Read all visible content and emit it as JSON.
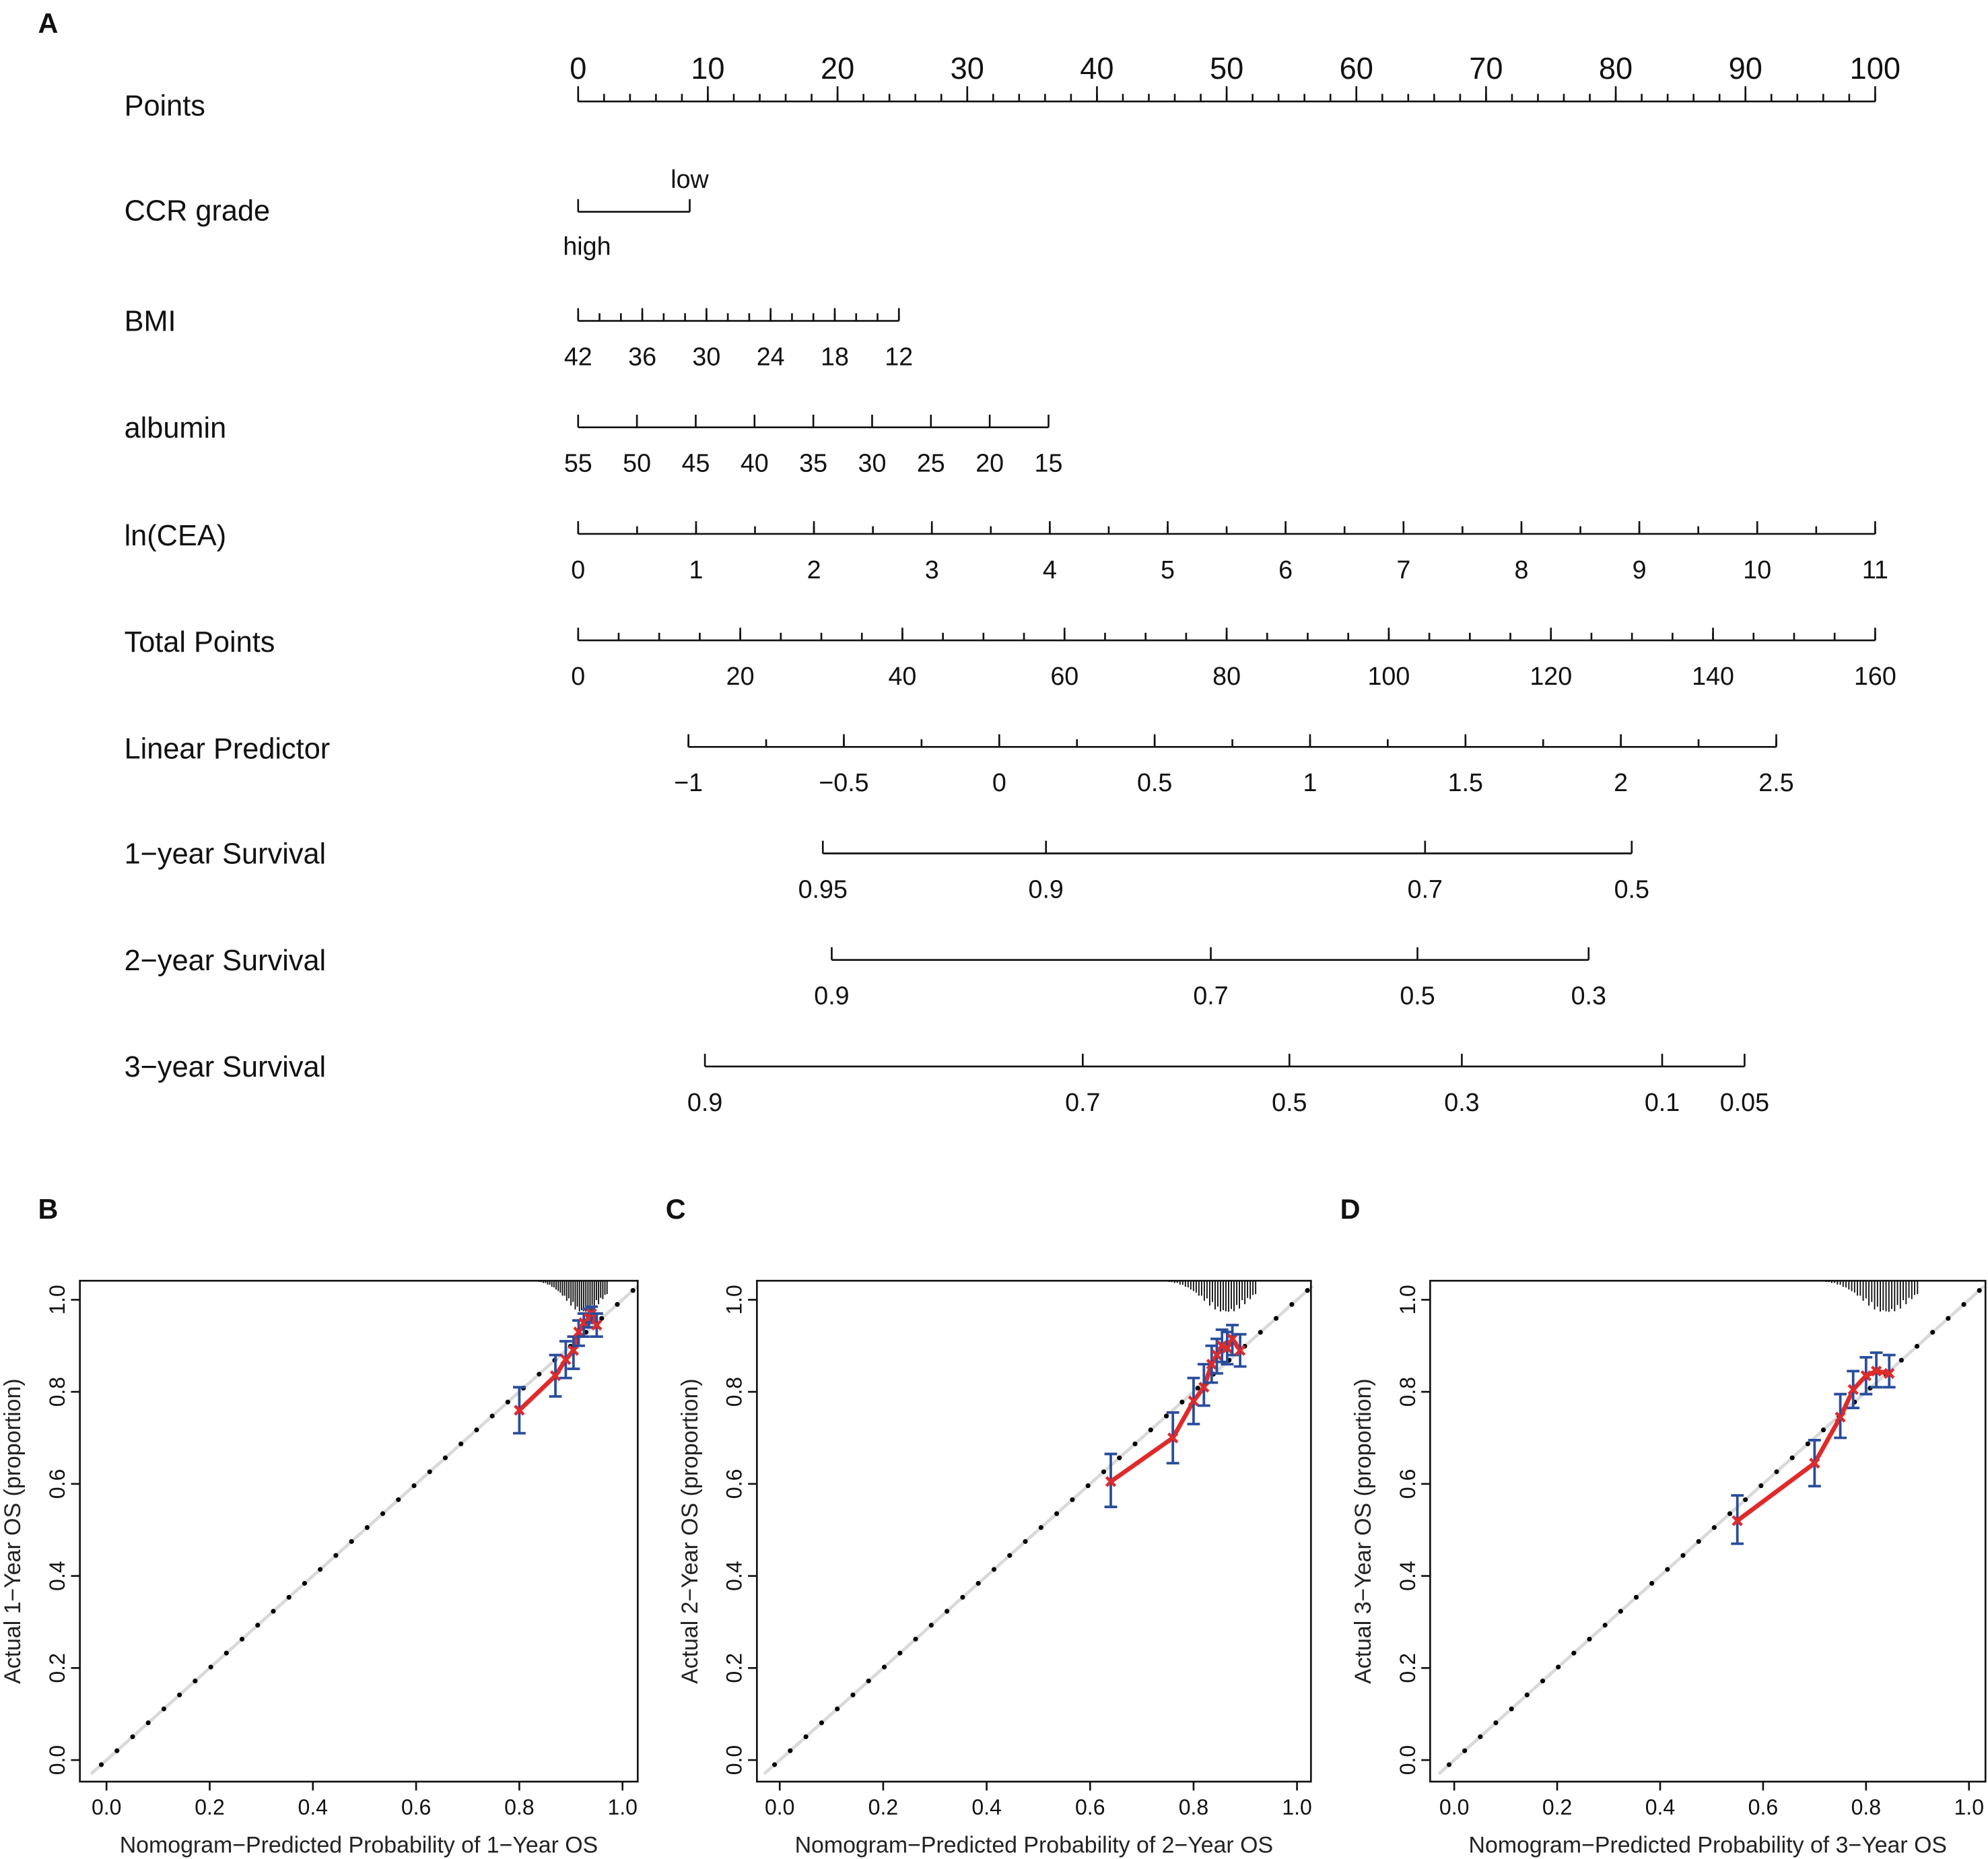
{
  "panels": [
    "A",
    "B",
    "C",
    "D"
  ],
  "chart_data": [
    {
      "type": "nomogram",
      "panel": "A",
      "rows": [
        {
          "label": "Points",
          "ticks": [
            "0",
            "10",
            "20",
            "30",
            "40",
            "50",
            "60",
            "70",
            "80",
            "90",
            "100"
          ],
          "range": [
            0,
            100
          ]
        },
        {
          "label": "CCR grade",
          "ticks": [
            "high",
            "low"
          ]
        },
        {
          "label": "BMI",
          "ticks": [
            "42",
            "36",
            "30",
            "24",
            "18",
            "12"
          ],
          "range": [
            42,
            12
          ]
        },
        {
          "label": "albumin",
          "ticks": [
            "55",
            "50",
            "45",
            "40",
            "35",
            "30",
            "25",
            "20",
            "15"
          ],
          "range": [
            55,
            15
          ]
        },
        {
          "label": "ln(CEA)",
          "ticks": [
            "0",
            "1",
            "2",
            "3",
            "4",
            "5",
            "6",
            "7",
            "8",
            "9",
            "10",
            "11"
          ],
          "range": [
            0,
            11
          ]
        },
        {
          "label": "Total Points",
          "ticks": [
            "0",
            "20",
            "40",
            "60",
            "80",
            "100",
            "120",
            "140",
            "160"
          ],
          "range": [
            0,
            160
          ]
        },
        {
          "label": "Linear Predictor",
          "ticks": [
            "−1",
            "−0.5",
            "0",
            "0.5",
            "1",
            "1.5",
            "2",
            "2.5"
          ],
          "range": [
            -1,
            2.5
          ]
        },
        {
          "label": "1−year Survival",
          "ticks": [
            "0.95",
            "0.9",
            "0.7",
            "0.5"
          ]
        },
        {
          "label": "2−year Survival",
          "ticks": [
            "0.9",
            "0.7",
            "0.5",
            "0.3"
          ]
        },
        {
          "label": "3−year Survival",
          "ticks": [
            "0.9",
            "0.7",
            "0.5",
            "0.3",
            "0.1",
            "0.05"
          ]
        }
      ]
    },
    {
      "type": "scatter",
      "panel": "B",
      "xlabel": "Nomogram−Predicted Probability of 1−Year OS",
      "ylabel": "Actual 1−Year OS (proportion)",
      "xlim": [
        0,
        1
      ],
      "ylim": [
        0,
        1
      ],
      "ticks": [
        "0.0",
        "0.2",
        "0.4",
        "0.6",
        "0.8",
        "1.0"
      ],
      "points": [
        [
          0.8,
          0.76,
          0.71,
          0.81
        ],
        [
          0.87,
          0.835,
          0.79,
          0.88
        ],
        [
          0.89,
          0.87,
          0.83,
          0.91
        ],
        [
          0.905,
          0.89,
          0.85,
          0.92
        ],
        [
          0.915,
          0.93,
          0.9,
          0.955
        ],
        [
          0.925,
          0.95,
          0.92,
          0.97
        ],
        [
          0.935,
          0.96,
          0.94,
          0.98
        ],
        [
          0.94,
          0.97,
          0.95,
          0.985
        ],
        [
          0.95,
          0.945,
          0.92,
          0.97
        ]
      ],
      "histogram_range": [
        0.6,
        0.97
      ]
    },
    {
      "type": "scatter",
      "panel": "C",
      "xlabel": "Nomogram−Predicted Probability of 2−Year OS",
      "ylabel": "Actual 2−Year OS (proportion)",
      "xlim": [
        0,
        1
      ],
      "ylim": [
        0,
        1
      ],
      "ticks": [
        "0.0",
        "0.2",
        "0.4",
        "0.6",
        "0.8",
        "1.0"
      ],
      "points": [
        [
          0.64,
          0.605,
          0.55,
          0.665
        ],
        [
          0.76,
          0.7,
          0.645,
          0.755
        ],
        [
          0.8,
          0.78,
          0.73,
          0.83
        ],
        [
          0.82,
          0.81,
          0.77,
          0.86
        ],
        [
          0.835,
          0.86,
          0.82,
          0.9
        ],
        [
          0.845,
          0.88,
          0.84,
          0.915
        ],
        [
          0.855,
          0.9,
          0.865,
          0.935
        ],
        [
          0.865,
          0.895,
          0.86,
          0.93
        ],
        [
          0.875,
          0.915,
          0.88,
          0.945
        ],
        [
          0.89,
          0.89,
          0.855,
          0.925
        ]
      ],
      "histogram_range": [
        0.45,
        0.92
      ]
    },
    {
      "type": "scatter",
      "panel": "D",
      "xlabel": "Nomogram−Predicted Probability of 3−Year OS",
      "ylabel": "Actual 3−Year OS (proportion)",
      "xlim": [
        0,
        1
      ],
      "ylim": [
        0,
        1
      ],
      "ticks": [
        "0.0",
        "0.2",
        "0.4",
        "0.6",
        "0.8",
        "1.0"
      ],
      "points": [
        [
          0.55,
          0.52,
          0.47,
          0.575
        ],
        [
          0.7,
          0.645,
          0.595,
          0.695
        ],
        [
          0.75,
          0.745,
          0.7,
          0.795
        ],
        [
          0.775,
          0.805,
          0.765,
          0.845
        ],
        [
          0.8,
          0.835,
          0.795,
          0.875
        ],
        [
          0.82,
          0.845,
          0.81,
          0.885
        ],
        [
          0.845,
          0.84,
          0.81,
          0.88
        ]
      ],
      "histogram_range": [
        0.4,
        0.9
      ]
    }
  ],
  "colors": {
    "fit": "#e02a2a",
    "errorbar": "#2a4d9c",
    "ideal": "#d9d9d9",
    "dots": "#000000"
  }
}
